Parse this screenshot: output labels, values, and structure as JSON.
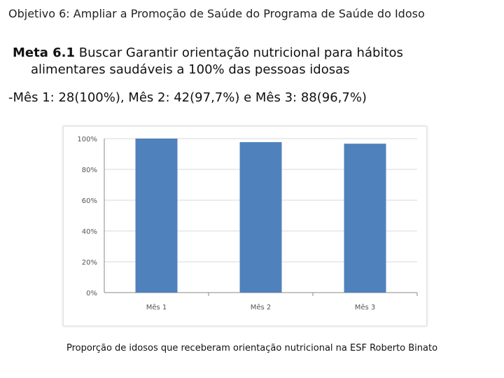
{
  "slide": {
    "title": "Objetivo 6: Ampliar a Promoção de Saúde do Programa de Saúde do Idoso",
    "goal_label": "Meta 6.1",
    "goal_text_line1": " Buscar Garantir orientação nutricional para hábitos",
    "goal_text_line2": "alimentares saudáveis a 100% das pessoas idosas",
    "results": "-Mês 1: 28(100%), Mês 2: 42(97,7%) e Mês 3: 88(96,7%)",
    "caption": "Proporção de idosos que receberam orientação nutricional na ESF Roberto Binato"
  },
  "colors": {
    "bar": "#4f81bd",
    "gridline": "#d9d9d9",
    "axis_text": "#555555"
  },
  "chart_data": {
    "type": "bar",
    "categories": [
      "Mês 1",
      "Mês 2",
      "Mês 3"
    ],
    "values": [
      100,
      97.7,
      96.7
    ],
    "ylim": [
      0,
      100
    ],
    "yticks": [
      0,
      20,
      40,
      60,
      80,
      100
    ],
    "ytick_labels": [
      "0%",
      "20%",
      "40%",
      "60%",
      "80%",
      "100%"
    ],
    "title": "",
    "xlabel": "",
    "ylabel": "",
    "grid": true,
    "legend": "none"
  }
}
